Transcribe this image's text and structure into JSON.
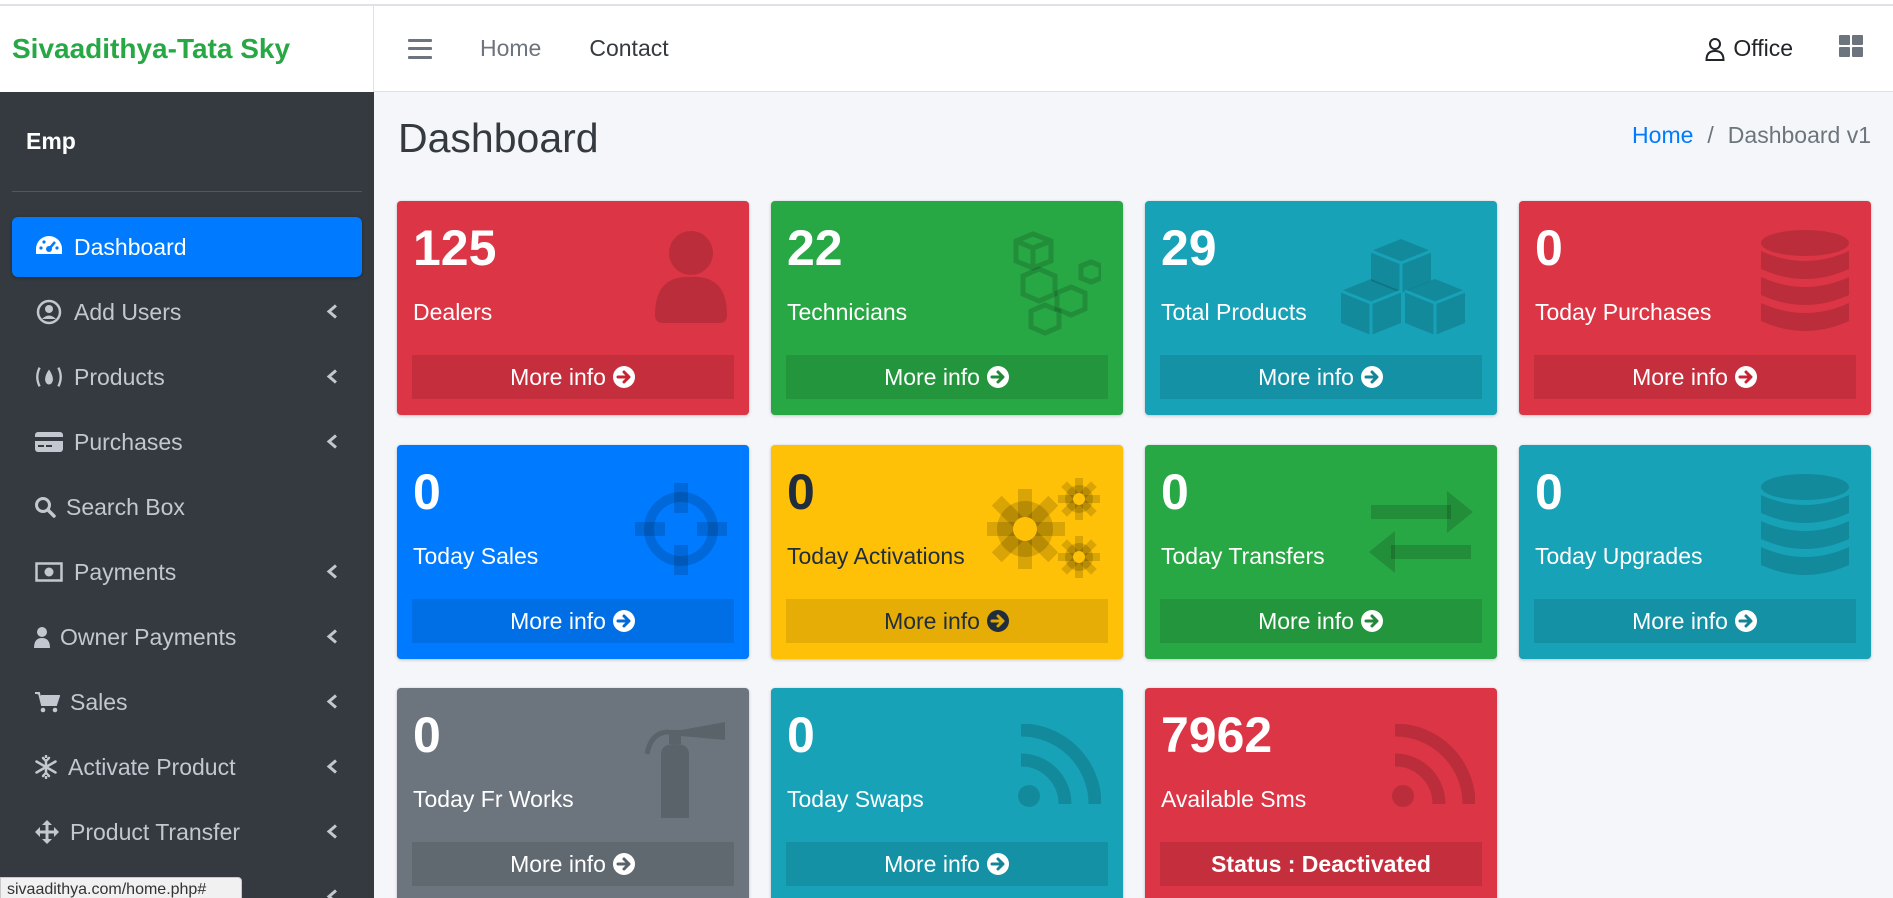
{
  "brand": "Sivaadithya-Tata Sky",
  "user": "Emp",
  "sidebar": {
    "items": [
      {
        "label": "Dashboard",
        "icon": "tachometer-icon",
        "active": true,
        "expandable": false
      },
      {
        "label": "Add Users",
        "icon": "user-circle-icon",
        "active": false,
        "expandable": true
      },
      {
        "label": "Products",
        "icon": "product-icon",
        "active": false,
        "expandable": true
      },
      {
        "label": "Purchases",
        "icon": "credit-card-icon",
        "active": false,
        "expandable": true
      },
      {
        "label": "Search Box",
        "icon": "search-icon",
        "active": false,
        "expandable": false
      },
      {
        "label": "Payments",
        "icon": "money-bill-icon",
        "active": false,
        "expandable": true
      },
      {
        "label": "Owner Payments",
        "icon": "user-icon",
        "active": false,
        "expandable": true
      },
      {
        "label": "Sales",
        "icon": "shopping-cart-icon",
        "active": false,
        "expandable": true
      },
      {
        "label": "Activate Product",
        "icon": "snowflake-icon",
        "active": false,
        "expandable": true
      },
      {
        "label": "Product Transfer",
        "icon": "arrows-icon",
        "active": false,
        "expandable": true
      }
    ]
  },
  "navbar": {
    "links": [
      "Home",
      "Contact"
    ],
    "user_label": "Office"
  },
  "page": {
    "title": "Dashboard",
    "breadcrumb": [
      "Home",
      "Dashboard v1"
    ]
  },
  "boxes": [
    {
      "value": "125",
      "label": "Dealers",
      "footer": "More info",
      "color": "#dc3545",
      "icon": "user-icon"
    },
    {
      "value": "22",
      "label": "Technicians",
      "footer": "More info",
      "color": "#28a745",
      "icon": "cubes-icon"
    },
    {
      "value": "29",
      "label": "Total Products",
      "footer": "More info",
      "color": "#17a2b8",
      "icon": "boxes-icon"
    },
    {
      "value": "0",
      "label": "Today Purchases",
      "footer": "More info",
      "color": "#dc3545",
      "icon": "database-icon"
    },
    {
      "value": "0",
      "label": "Today Sales",
      "footer": "More info",
      "color": "#007bff",
      "icon": "crosshairs-icon"
    },
    {
      "value": "0",
      "label": "Today Activations",
      "footer": "More info",
      "color": "#ffc107",
      "icon": "cogs-icon"
    },
    {
      "value": "0",
      "label": "Today Transfers",
      "footer": "More info",
      "color": "#28a745",
      "icon": "exchange-icon"
    },
    {
      "value": "0",
      "label": "Today Upgrades",
      "footer": "More info",
      "color": "#17a2b8",
      "icon": "database-icon"
    },
    {
      "value": "0",
      "label": "Today Fr Works",
      "footer": "More info",
      "color": "#6c757d",
      "icon": "fire-extinguisher-icon"
    },
    {
      "value": "0",
      "label": "Today Swaps",
      "footer": "More info",
      "color": "#17a2b8",
      "icon": "rss-icon"
    },
    {
      "value": "7962",
      "label": "Available Sms",
      "footer": "Status : Deactivated",
      "color": "#dc3545",
      "icon": "rss-icon"
    }
  ],
  "status_url": "sivaadithya.com/home.php#"
}
